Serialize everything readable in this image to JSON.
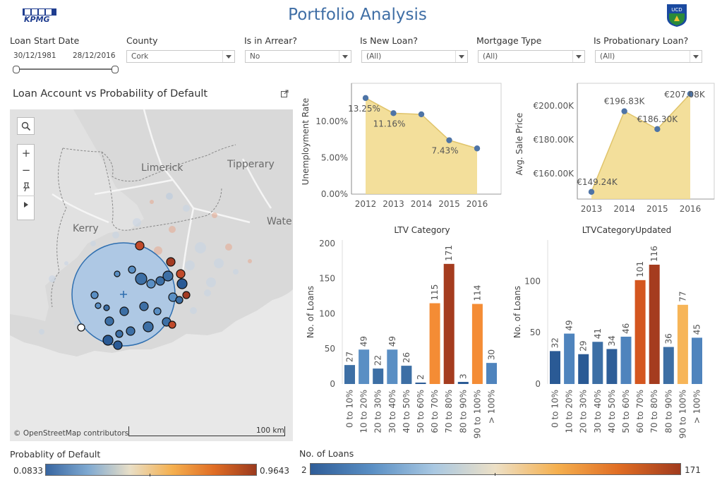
{
  "header": {
    "title": "Portfolio Analysis",
    "kpmg_logo_text": "KPMG",
    "ucd_logo_text": "UCD DUBLIN"
  },
  "filters": {
    "loan_start_date": {
      "label": "Loan Start Date",
      "from": "30/12/1981",
      "to": "28/12/2016"
    },
    "county": {
      "label": "County",
      "value": "Cork"
    },
    "arrear": {
      "label": "Is in Arrear?",
      "value": "No"
    },
    "new_loan": {
      "label": "Is New Loan?",
      "value": "(All)"
    },
    "mortgage_type": {
      "label": "Mortgage Type",
      "value": "(All)"
    },
    "probationary": {
      "label": "Is Probationary Loan?",
      "value": "(All)"
    }
  },
  "map_panel": {
    "title": "Loan Account vs Probability of Default",
    "places": {
      "limerick": "Limerick",
      "tipperary": "Tipperary",
      "kerry": "Kerry",
      "waterford": "Wate"
    },
    "attribution": "© OpenStreetMap contributors",
    "scale": "100 km",
    "controls": {
      "search": "search-icon",
      "zoom_in": "+",
      "zoom_out": "−",
      "pin": "pin-icon",
      "play": "play-icon"
    }
  },
  "chart_data": [
    {
      "type": "area",
      "title": "",
      "xlabel": "",
      "ylabel": "Unemployment Rate",
      "x": [
        2012,
        2013,
        2014,
        2015,
        2016
      ],
      "values": [
        13.25,
        11.16,
        11.0,
        7.43,
        6.3
      ],
      "labels": [
        "13.25%",
        "11.16%",
        "",
        "7.43%",
        ""
      ],
      "yticks": [
        "0.00%",
        "5.00%",
        "10.00%"
      ],
      "ylim": [
        0,
        14.5
      ],
      "color": "#f1d989"
    },
    {
      "type": "area",
      "title": "",
      "xlabel": "",
      "ylabel": "Avg. Sale Price",
      "x": [
        2013,
        2014,
        2015,
        2016
      ],
      "values": [
        149.24,
        196.83,
        186.3,
        207.08
      ],
      "labels": [
        "€149.24K",
        "€196.83K",
        "€186.30K",
        "€207.08K"
      ],
      "yticks": [
        "€160.00K",
        "€180.00K",
        "€200.00K"
      ],
      "ylim": [
        145,
        210
      ],
      "color": "#f1d989"
    },
    {
      "type": "bar",
      "title": "LTV Category",
      "ylabel": "No. of Loans",
      "categories": [
        "0 to 10%",
        "10 to 20%",
        "20 to 30%",
        "30 to 40%",
        "40 to 50%",
        "50 to 60%",
        "60 to 70%",
        "70 to 80%",
        "80 to 90%",
        "90 to 100%",
        "> 100%"
      ],
      "values": [
        27,
        49,
        22,
        49,
        26,
        2,
        115,
        171,
        3,
        114,
        30
      ],
      "colors": [
        "#3d6fa5",
        "#5a8fc4",
        "#3d6fa5",
        "#5a8fc4",
        "#3d6fa5",
        "#2a5a95",
        "#f48c35",
        "#a53c1f",
        "#2a5a95",
        "#f48c35",
        "#4f84bd"
      ],
      "yticks": [
        0,
        50,
        100,
        150,
        200
      ],
      "ylim": [
        0,
        205
      ]
    },
    {
      "type": "bar",
      "title": "LTVCategoryUpdated",
      "ylabel": "No. of Loans",
      "categories": [
        "0 to 10%",
        "10 to 20%",
        "20 to 30%",
        "30 to 40%",
        "40 to 50%",
        "50 to 60%",
        "60 to 70%",
        "70 to 80%",
        "80 to 90%",
        "90 to 100%",
        "> 100%"
      ],
      "values": [
        32,
        49,
        29,
        41,
        34,
        46,
        101,
        116,
        36,
        77,
        45
      ],
      "colors": [
        "#2a5a95",
        "#4f84bd",
        "#2a5a95",
        "#3d6fa5",
        "#2e5e98",
        "#4f84bd",
        "#d4561f",
        "#a53c1f",
        "#3d6fa5",
        "#f7b558",
        "#4f84bd"
      ],
      "yticks": [
        0,
        50,
        100
      ],
      "ylim": [
        0,
        140
      ]
    }
  ],
  "legends": {
    "probability": {
      "title": "Probablity of Default",
      "min": "0.0833",
      "max": "0.9643"
    },
    "loans": {
      "title": "No. of Loans",
      "min": "2",
      "max": "171"
    }
  }
}
